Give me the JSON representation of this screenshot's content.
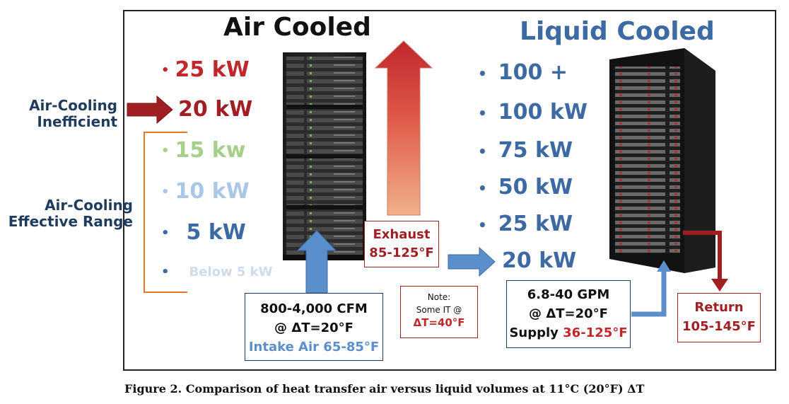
{
  "air": {
    "title": "Air Cooled",
    "title_color": "#111111",
    "items": [
      {
        "bullet": "•",
        "text": "25 kW",
        "color": "#c0282b"
      },
      {
        "bullet": "",
        "text": "20 kW",
        "color": "#a01f22"
      },
      {
        "bullet": "•",
        "text": "15 kw",
        "color": "#a6cf8c"
      },
      {
        "bullet": "•",
        "text": "10 kW",
        "color": "#a9c8e8"
      },
      {
        "bullet": "•",
        "text": "5 kW",
        "color": "#3d6aa3"
      },
      {
        "bullet": "•",
        "text": "Below 5 kW",
        "color": "#cfdaea"
      }
    ]
  },
  "liquid": {
    "title": "Liquid Cooled",
    "title_color": "#3d6aa3",
    "items": [
      {
        "bullet": "•",
        "text": "100 +"
      },
      {
        "bullet": "•",
        "text": "100 kW"
      },
      {
        "bullet": "•",
        "text": "75 kW"
      },
      {
        "bullet": "•",
        "text": "50 kW"
      },
      {
        "bullet": "•",
        "text": "25 kW"
      },
      {
        "bullet": "",
        "text": "20 kW"
      }
    ],
    "color": "#3d6aa3"
  },
  "side_labels": {
    "inefficient": [
      "Air-Cooling",
      "Inefficient"
    ],
    "effective": [
      "Air-Cooling",
      "Effective Range"
    ]
  },
  "exhaust": {
    "label": "Exhaust",
    "temp": "85-125°F"
  },
  "intake": {
    "line1": "800-4,000 CFM",
    "line2": "@ ΔT=20°F",
    "line3": "Intake Air 65-85°F"
  },
  "note": {
    "line1": "Note:",
    "line2": "Some IT @",
    "line3": "ΔT=40°F"
  },
  "supply": {
    "line1": "6.8-40 GPM",
    "line2": "@ ΔT=20°F",
    "line3_prefix": "Supply ",
    "line3_value": "36-125°F"
  },
  "return": {
    "label": "Return",
    "temp": "105-145°F"
  },
  "caption": "Figure 2. Comparison of heat transfer air versus liquid volumes at 11°C (20°F) ΔT",
  "colors": {
    "dark_red": "#a01f22",
    "blue": "#5b8fcb",
    "navy": "#1f3c5e",
    "orange": "#e87722"
  }
}
